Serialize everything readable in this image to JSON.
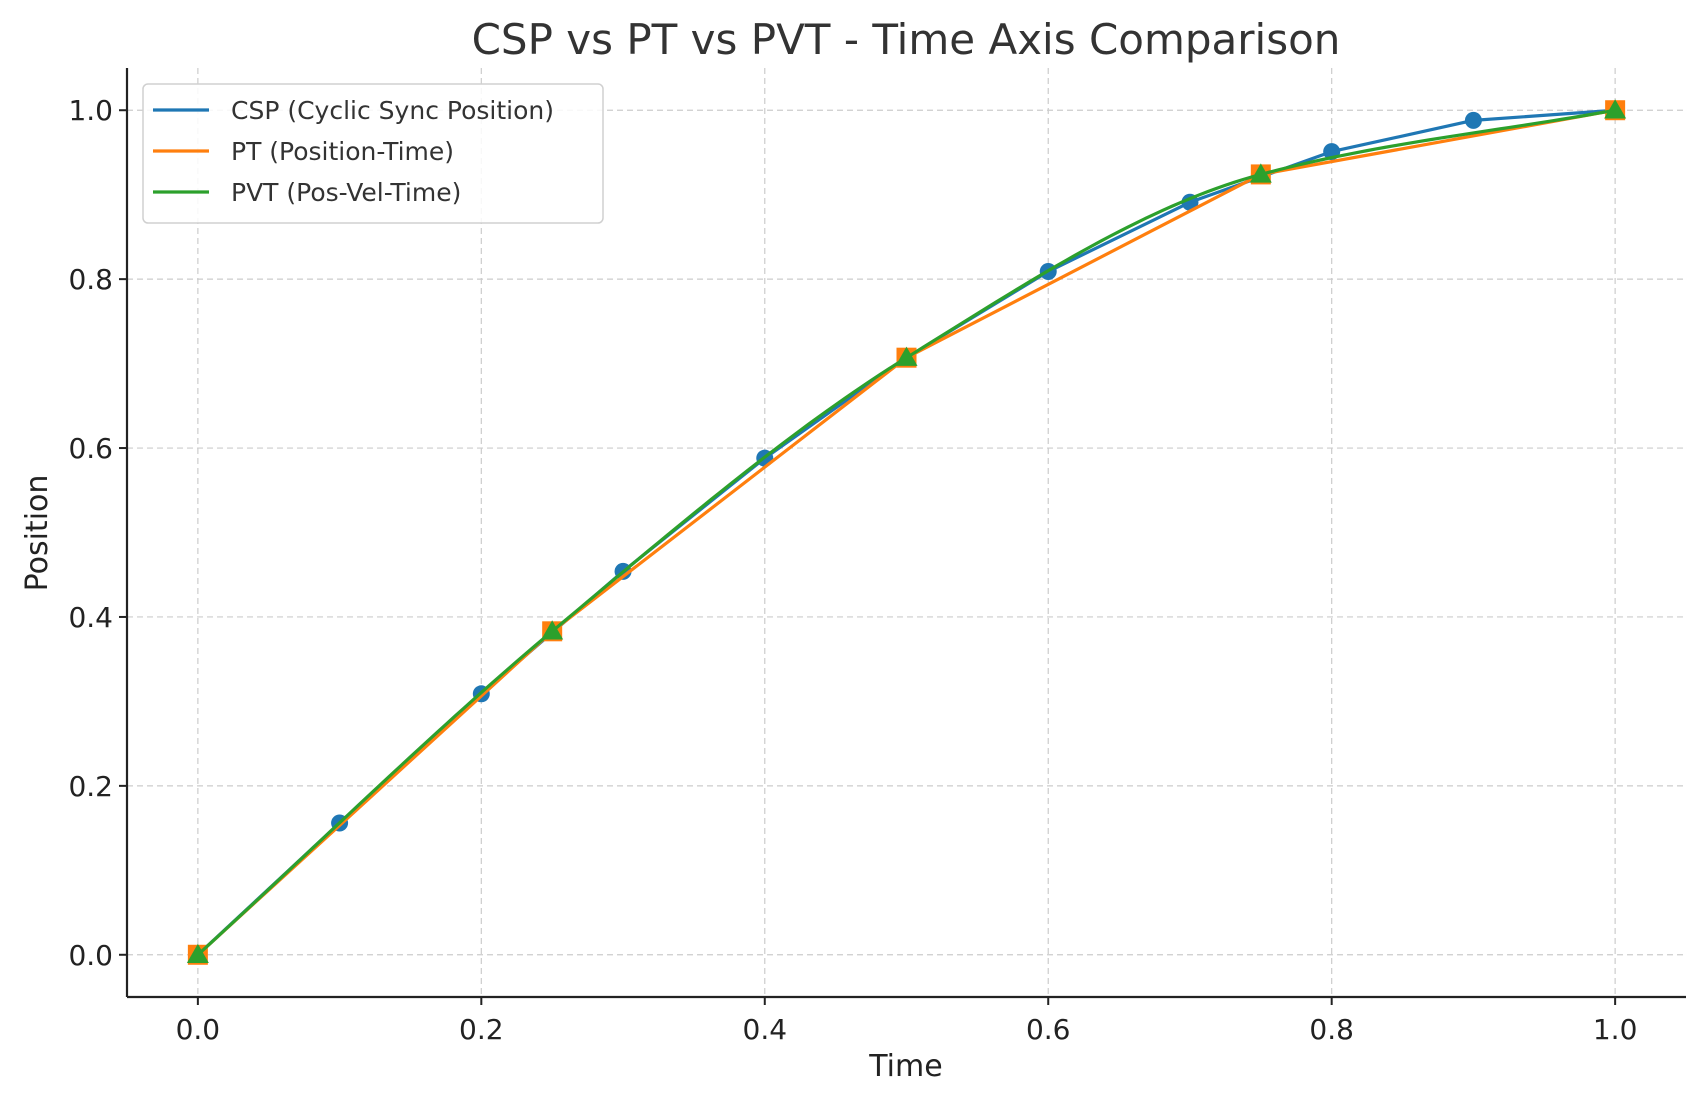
{
  "chart_data": {
    "type": "line",
    "title": "CSP vs PT vs PVT - Time Axis Comparison",
    "xlabel": "Time",
    "ylabel": "Position",
    "xlim": [
      -0.05,
      1.05
    ],
    "ylim": [
      -0.05,
      1.05
    ],
    "xticks": [
      0.0,
      0.2,
      0.4,
      0.6,
      0.8,
      1.0
    ],
    "xtick_labels": [
      "0.0",
      "0.2",
      "0.4",
      "0.6",
      "0.8",
      "1.0"
    ],
    "yticks": [
      0.0,
      0.2,
      0.4,
      0.6,
      0.8,
      1.0
    ],
    "ytick_labels": [
      "0.0",
      "0.2",
      "0.4",
      "0.6",
      "0.8",
      "1.0"
    ],
    "grid": true,
    "legend_position": "top-left",
    "series": [
      {
        "name": "CSP (Cyclic Sync Position)",
        "color": "#1f77b4",
        "marker": "circle",
        "x": [
          0.0,
          0.1,
          0.2,
          0.3,
          0.4,
          0.5,
          0.6,
          0.7,
          0.8,
          0.9,
          1.0
        ],
        "y": [
          0.0,
          0.156,
          0.309,
          0.454,
          0.588,
          0.707,
          0.809,
          0.891,
          0.951,
          0.988,
          1.0
        ]
      },
      {
        "name": "PT (Position-Time)",
        "color": "#ff7f0e",
        "marker": "square",
        "x": [
          0.0,
          0.25,
          0.5,
          0.75,
          1.0
        ],
        "y": [
          0.0,
          0.383,
          0.707,
          0.924,
          1.0
        ]
      },
      {
        "name": "PVT (Pos-Vel-Time)",
        "color": "#2ca02c",
        "marker": "triangle",
        "curve": "smooth",
        "x": [
          0.0,
          0.25,
          0.5,
          0.75,
          1.0
        ],
        "y": [
          0.0,
          0.383,
          0.707,
          0.924,
          1.0
        ]
      }
    ]
  }
}
